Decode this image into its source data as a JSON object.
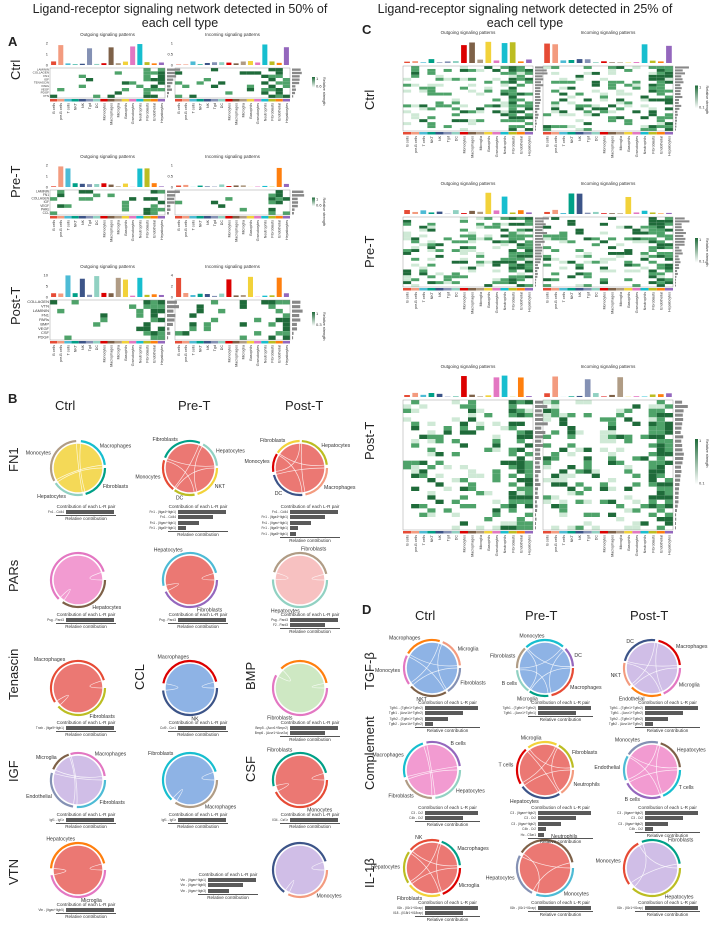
{
  "left_title": "Ligand-receptor signaling network detected in 50% of each cell type",
  "right_title": "Ligand-receptor signaling network detected in 25% of each cell type",
  "panels": {
    "A": "A",
    "B": "B",
    "C": "C",
    "D": "D"
  },
  "conditions": [
    "Ctrl",
    "Pre-T",
    "Post-T"
  ],
  "heat_titles": {
    "out": "Outgoing signaling patterns",
    "in": "Incoming signaling patterns"
  },
  "legend": {
    "label": "Relative strength",
    "max": "1",
    "ctrl_min": "0.6",
    "pre_min": "0.6",
    "post_min": "0.3",
    "c_min": "0.1"
  },
  "cell_types": [
    "B cells",
    "pre-B cells",
    "T cells",
    "NKT",
    "NK",
    "Tgd",
    "DC",
    "Monocytes",
    "Macrophages",
    "Microglia",
    "Basophils",
    "Granulocytes",
    "Neutrophils",
    "Fibroblasts",
    "Endothelial",
    "Hepatocytes"
  ],
  "A_pathways": {
    "ctrl": [
      "LAMININ",
      "COLLAGEN",
      "FN1",
      "IGF",
      "TENASCIN",
      "PARs",
      "VEGF",
      "PDGF",
      "VTN"
    ],
    "pre": [
      "LAMININ",
      "FN1",
      "COLLAGEN",
      "IGF",
      "VEGF",
      "PARs",
      "CCL"
    ],
    "post": [
      "COLLAGEN",
      "VTN",
      "LAMININ",
      "FN1",
      "PARs",
      "BMP",
      "VEGF",
      "CSF",
      "PDGF"
    ]
  },
  "A_yaxis": {
    "ctrl": [
      "2",
      "1",
      "0"
    ],
    "ctrl_in": [
      "1",
      "0.5",
      "0"
    ],
    "pre": [
      "2",
      "1",
      "0"
    ],
    "pre_in": [
      "1",
      "0.5",
      "0"
    ],
    "post": [
      "10",
      "5",
      "0"
    ],
    "post_in": [
      "4",
      "2",
      "0"
    ]
  },
  "B_row_labels": [
    "FN1",
    "PARs",
    "Tenascin",
    "IGF",
    "VTN"
  ],
  "B_extra_labels": {
    "ccl": "CCL",
    "bmp": "BMP",
    "csf": "CSF"
  },
  "bar_caption": "Contribution of each L-R pair",
  "bar_xlabel": "Relative contribution",
  "B_chords": [
    {
      "labels": [
        "Fibroblasts",
        "Hepatocytes",
        "Monocytes",
        "Macrophages"
      ],
      "pairs": [
        "Fn1 - Cd44"
      ]
    },
    {
      "labels": [
        "NKT",
        "DC",
        "Monocytes",
        "Fibroblasts",
        "Hepatocytes"
      ],
      "pairs": [
        "Fn1 - (Itga4+Itgb1)",
        "Fn1 - Cd44",
        "Fn1 - (Itgav+Itgb1)",
        "Fn1 - (Itga5+Itgb1)"
      ]
    },
    {
      "labels": [
        "Macrophages",
        "DC",
        "Monocytes",
        "Fibroblasts",
        "Hepatocytes"
      ],
      "pairs": [
        "Fn1 - Cd44",
        "Fn1 - (Itga4+Itgb1)",
        "Fn1 - (Itgav+Itgb1)",
        "Fn1 - (Itga5+Itgb1)",
        "Fn1 - (Itga8+Itgb1)"
      ]
    },
    {
      "labels": [
        "Hepatocytes"
      ],
      "pairs": [
        "Psg - Pard3"
      ]
    },
    {
      "labels": [
        "Fibroblasts",
        "Hepatocytes"
      ],
      "pairs": [
        "Psg - Pard3"
      ]
    },
    {
      "labels": [
        "Hepatocytes",
        "Fibroblasts"
      ],
      "pairs": [
        "Psg - Pard3",
        "F2 - Pard3"
      ]
    },
    {
      "labels": [
        "Fibroblasts",
        "Macrophages"
      ],
      "pairs": [
        "Tnxb - (Itga9+Itgb1)"
      ]
    },
    {
      "labels": [
        "NK",
        "Macrophages"
      ],
      "pairs": [
        "Ccl9 - Ccr1"
      ]
    },
    {
      "labels": [
        "Fibroblasts"
      ],
      "pairs": [
        "Bmp5 - (Acvr1+Bmpr2)",
        "Bmp6 - (Acvr1+Acvr2a)"
      ]
    },
    {
      "labels": [
        "Fibroblasts",
        "Endothelial",
        "Microglia",
        "Macrophages"
      ],
      "pairs": [
        "Igf1 - Igf1r"
      ]
    },
    {
      "labels": [
        "Macrophages",
        "Fibroblasts"
      ],
      "pairs": [
        "Igf1 - Igf1r"
      ]
    },
    {
      "labels": [
        "Monocytes",
        "Fibroblasts"
      ],
      "pairs": [
        "Il34 - Csf1r"
      ]
    },
    {
      "labels": [
        "Microglia",
        "Hepatocytes"
      ],
      "pairs": [
        "Vtn - (Itgav+Itgb5)"
      ]
    },
    {
      "labels": [],
      "pairs": [
        "Vtn - (Itgav+Itgb1)",
        "Vtn - (Itgav+Itgb5)",
        "Vtn - (Itgav+Itgb3)"
      ]
    },
    {
      "labels": [
        "Monocytes"
      ],
      "pairs": []
    }
  ],
  "D_row_labels": [
    "TGF-β",
    "Complement",
    "IL-1β"
  ],
  "D_chords": [
    {
      "labels": [
        "Fibroblasts",
        "NKT",
        "Monocytes",
        "Macrophages",
        "Microglia"
      ],
      "pairs": [
        "Tgfb1 - (Tgfbr1+Tgfbr2)",
        "Tgfb1 - (Acvr1b+Tgfbr2)",
        "Tgfb2 - (Tgfbr1+Tgfbr2)",
        "Tgfb2 - (Acvr1b+Tgfbr2)"
      ]
    },
    {
      "labels": [
        "Macrophages",
        "Microglia",
        "B cells",
        "Fibroblasts",
        "Monocytes",
        "DC"
      ],
      "pairs": [
        "Tgfb1 - (Tgfbr1+Tgfbr2)",
        "Tgfb1 - (Acvr1+Tgfbr1)"
      ]
    },
    {
      "labels": [
        "Microglia",
        "Endothelial",
        "NKT",
        "DC",
        "Macrophages"
      ],
      "pairs": [
        "Tgfb1 - (Tgfbr1+Tgfbr2)",
        "Tgfb1 - (Acvr1+Tgfbr2)",
        "Tgfb2 - (Tgfbr1+Tgfbr2)",
        "Tgfb2 - (Acvr1b+Tgfbr2)"
      ]
    },
    {
      "labels": [
        "Hepatocytes",
        "Fibroblasts",
        "Macrophages",
        "B cells"
      ],
      "pairs": [
        "C3 - Cr2",
        "C4b - Cr2"
      ]
    },
    {
      "labels": [
        "Neutrophils",
        "Hepatocytes",
        "T cells",
        "Microglia",
        "Fibroblasts"
      ],
      "pairs": [
        "C3 - (Itgam+Itgb2)",
        "C3 - Cr2",
        "C3 - (Itgax+Itgb2)",
        "C4b - Cr2",
        "Hc - C5ar1"
      ]
    },
    {
      "labels": [
        "T cells",
        "B cells",
        "Endothelial",
        "Monocytes",
        "Hepatocytes"
      ],
      "pairs": [
        "C3 - (Itgam+Itgb2)",
        "C3 - Cr2",
        "C3 - (Itgax+Itgb2)",
        "C4b - Cr2"
      ]
    },
    {
      "labels": [
        "Microglia",
        "Fibroblasts",
        "Hepatocytes",
        "NK",
        "Macrophages"
      ],
      "pairs": [
        "Il1b - (Il1r1+Il1rap)",
        "Il18 - (Il18r1+Il18rap)"
      ]
    },
    {
      "labels": [
        "Monocytes",
        "Hepatocytes",
        "Neutrophils"
      ],
      "pairs": [
        "Il1b - (Il1r1+Il1rap)"
      ]
    },
    {
      "labels": [
        "Hepatocytes",
        "Monocytes",
        "Fibroblasts"
      ],
      "pairs": [
        "Il1b - (Il1r1+Il1rap)"
      ]
    }
  ],
  "colors": {
    "green_dark": "#1f6b3a",
    "green_mid": "#4fa36a",
    "green_light": "#cfe9d6",
    "red": "#e8605a",
    "pink": "#f08ac9",
    "blue": "#7aa6e0",
    "yellow": "#f2d23a",
    "lavender": "#c8b3e3"
  }
}
